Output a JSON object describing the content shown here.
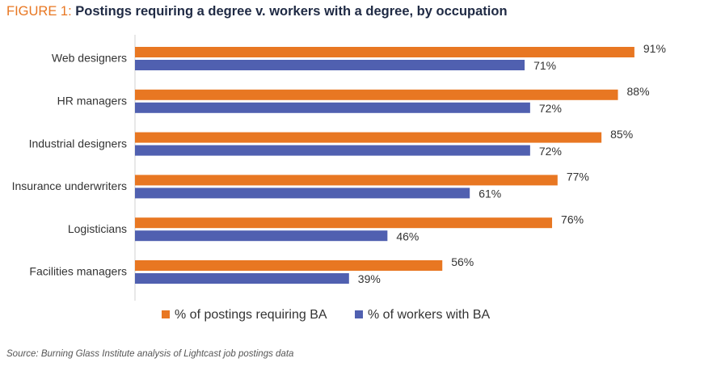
{
  "title": {
    "prefix": "FIGURE 1:",
    "text": "Postings requiring a degree v. workers with a degree, by occupation"
  },
  "source": "Source: Burning Glass Institute analysis of Lightcast job postings data",
  "chart_data": {
    "type": "bar",
    "orientation": "horizontal",
    "categories": [
      "Web designers",
      "HR managers",
      "Industrial designers",
      "Insurance underwriters",
      "Logisticians",
      "Facilities managers"
    ],
    "series": [
      {
        "name": "% of postings requiring BA",
        "color": "#e87722",
        "values": [
          91,
          88,
          85,
          77,
          76,
          56
        ]
      },
      {
        "name": "% of workers with BA",
        "color": "#5060b0",
        "values": [
          71,
          72,
          72,
          61,
          46,
          39
        ]
      }
    ],
    "value_suffix": "%",
    "xlim": [
      0,
      100
    ],
    "grid": false,
    "legend_position": "bottom"
  }
}
